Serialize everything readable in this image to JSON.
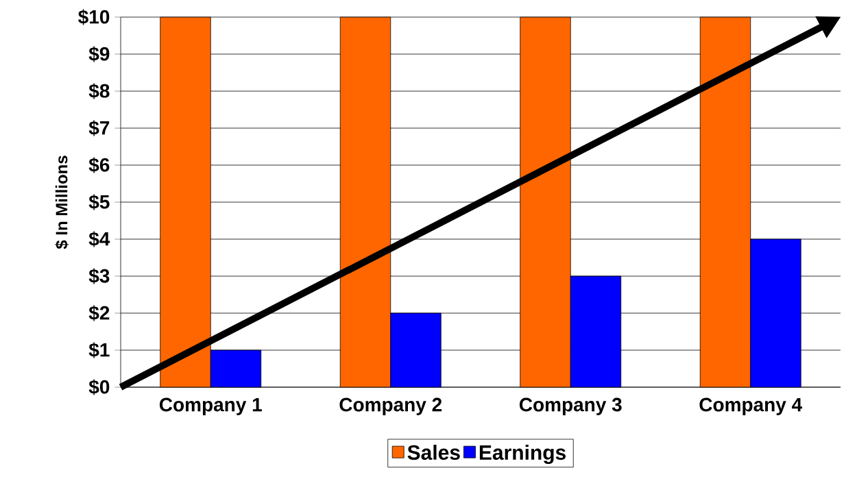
{
  "chart_data": {
    "type": "bar",
    "ylabel": "$ In Millions",
    "categories": [
      "Company 1",
      "Company 2",
      "Company 3",
      "Company 4"
    ],
    "series": [
      {
        "name": "Sales",
        "color": "#ff6600",
        "values": [
          10,
          10,
          10,
          10
        ]
      },
      {
        "name": "Earnings",
        "color": "#0000ff",
        "values": [
          1,
          2,
          3,
          4
        ]
      }
    ],
    "ylim": [
      0,
      10
    ],
    "yticks": [
      {
        "value": 0,
        "label": "$0"
      },
      {
        "value": 1,
        "label": "$1"
      },
      {
        "value": 2,
        "label": "$2"
      },
      {
        "value": 3,
        "label": "$3"
      },
      {
        "value": 4,
        "label": "$4"
      },
      {
        "value": 5,
        "label": "$5"
      },
      {
        "value": 6,
        "label": "$6"
      },
      {
        "value": 7,
        "label": "$7"
      },
      {
        "value": 8,
        "label": "$8"
      },
      {
        "value": 9,
        "label": "$9"
      },
      {
        "value": 10,
        "label": "$10"
      }
    ],
    "grid": "y",
    "legend": "bottom"
  }
}
